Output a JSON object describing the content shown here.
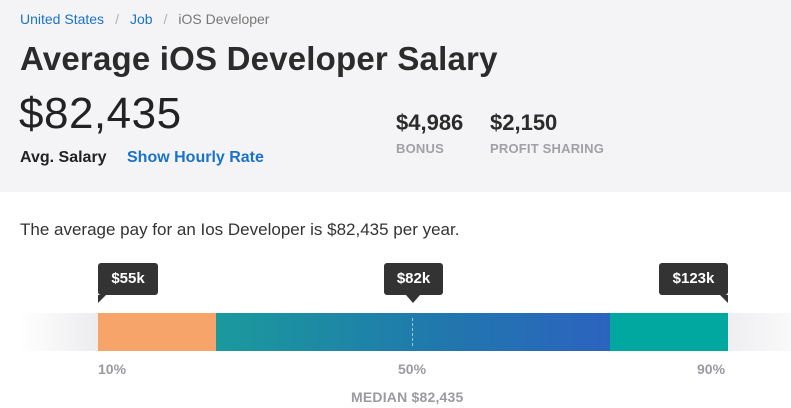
{
  "breadcrumb": {
    "items": [
      "United States",
      "Job"
    ],
    "current": "iOS Developer"
  },
  "title": "Average iOS Developer Salary",
  "salary": {
    "amount": "$82,435",
    "label": "Avg. Salary",
    "hourly_link": "Show Hourly Rate"
  },
  "stats": {
    "bonus": {
      "value": "$4,986",
      "label": "BONUS"
    },
    "profit_sharing": {
      "value": "$2,150",
      "label": "PROFIT SHARING"
    }
  },
  "summary": "The average pay for an Ios Developer is $82,435 per year.",
  "range": {
    "low": {
      "value": "$55k",
      "percentile": "10%"
    },
    "mid": {
      "value": "$82k",
      "percentile": "50%"
    },
    "high": {
      "value": "$123k",
      "percentile": "90%"
    },
    "median_label": "MEDIAN $82,435"
  },
  "colors": {
    "link": "#1a73c8",
    "low_segment": "#f7a46b",
    "mid_segment_start": "#1a9a9c",
    "mid_segment_end": "#2c63bf",
    "high_segment": "#00a8a0"
  }
}
